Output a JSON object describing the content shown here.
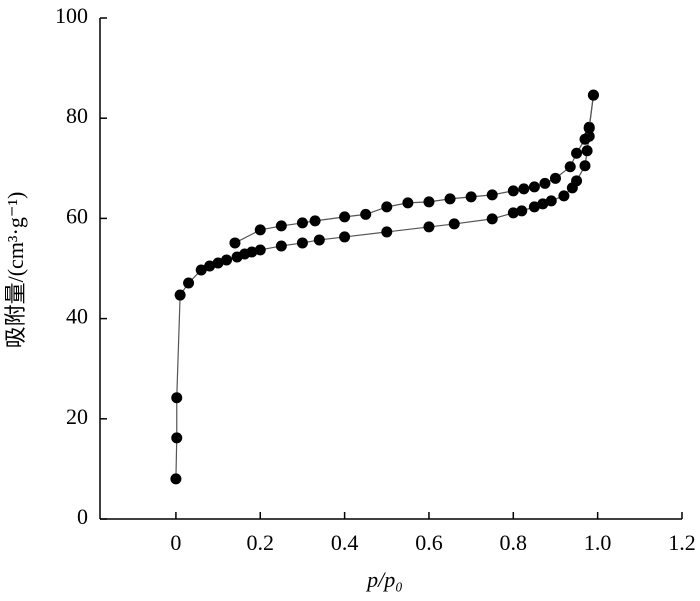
{
  "chart_data": {
    "type": "line",
    "x_label": "p/p₀",
    "y_label": "吸附量/(cm³·g⁻¹)",
    "xlim": [
      -0.18,
      1.2
    ],
    "ylim": [
      0,
      100
    ],
    "xticks": [
      0,
      0.2,
      0.4,
      0.6,
      0.8,
      {
        "value": 1,
        "label": "1.0"
      },
      1.2
    ],
    "yticks": [
      0,
      20,
      40,
      60,
      80,
      100
    ],
    "series": [
      {
        "color": "#000000",
        "x": [
          0.0,
          0.002,
          0.002,
          0.01,
          0.03,
          0.06,
          0.08,
          0.1,
          0.12,
          0.145,
          0.163,
          0.18,
          0.2,
          0.25,
          0.3,
          0.34,
          0.4,
          0.5,
          0.6,
          0.66,
          0.75,
          0.8,
          0.82,
          0.85,
          0.87,
          0.89,
          0.92,
          0.94,
          0.95,
          0.97,
          0.975,
          0.98,
          0.98,
          0.99
        ],
        "values": [
          8.0,
          16.2,
          24.2,
          44.7,
          47.1,
          49.7,
          50.5,
          51.1,
          51.7,
          52.3,
          52.9,
          53.3,
          53.7,
          54.5,
          55.1,
          55.7,
          56.3,
          57.3,
          58.3,
          58.9,
          59.9,
          61.1,
          61.5,
          62.3,
          62.9,
          63.5,
          64.5,
          66.1,
          67.5,
          70.5,
          73.5,
          76.4,
          78.2,
          84.6
        ]
      },
      {
        "color": "#000000",
        "x": [
          0.14,
          0.2,
          0.25,
          0.3,
          0.33,
          0.4,
          0.45,
          0.5,
          0.55,
          0.6,
          0.65,
          0.7,
          0.75,
          0.8,
          0.825,
          0.85,
          0.875,
          0.9,
          0.935,
          0.95,
          0.97,
          0.98,
          0.99
        ],
        "values": [
          55.1,
          57.7,
          58.5,
          59.1,
          59.5,
          60.3,
          60.8,
          62.3,
          63.1,
          63.3,
          63.9,
          64.3,
          64.7,
          65.5,
          65.9,
          66.3,
          67.0,
          68.0,
          70.3,
          73.0,
          75.8,
          78.0,
          84.6
        ]
      }
    ]
  }
}
